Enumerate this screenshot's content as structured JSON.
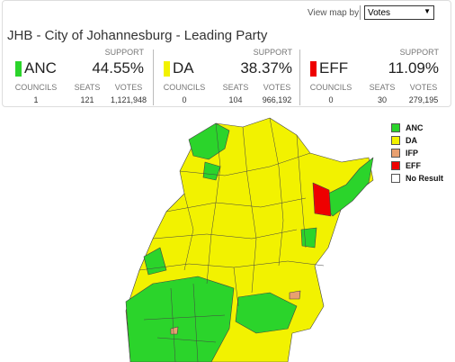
{
  "header": {
    "view_label": "View map by",
    "view_option": "Votes",
    "title": "JHB - City of Johannesburg - Leading Party"
  },
  "parties": [
    {
      "name": "ANC",
      "color": "#2bd42b",
      "support_label": "SUPPORT",
      "support": "44.55%",
      "councils_label": "COUNCILS",
      "seats_label": "SEATS",
      "votes_label": "VOTES",
      "councils": "1",
      "seats": "121",
      "votes": "1,121,948"
    },
    {
      "name": "DA",
      "color": "#f2f200",
      "support_label": "SUPPORT",
      "support": "38.37%",
      "councils_label": "COUNCILS",
      "seats_label": "SEATS",
      "votes_label": "VOTES",
      "councils": "0",
      "seats": "104",
      "votes": "966,192"
    },
    {
      "name": "EFF",
      "color": "#ee0000",
      "support_label": "SUPPORT",
      "support": "11.09%",
      "councils_label": "COUNCILS",
      "seats_label": "SEATS",
      "votes_label": "VOTES",
      "councils": "0",
      "seats": "30",
      "votes": "279,195"
    }
  ],
  "legend": [
    {
      "label": "ANC",
      "color": "#2bd42b"
    },
    {
      "label": "DA",
      "color": "#f2f200"
    },
    {
      "label": "IFP",
      "color": "#e8a070"
    },
    {
      "label": "EFF",
      "color": "#ee0000"
    },
    {
      "label": "No Result",
      "color": "#ffffff"
    }
  ]
}
